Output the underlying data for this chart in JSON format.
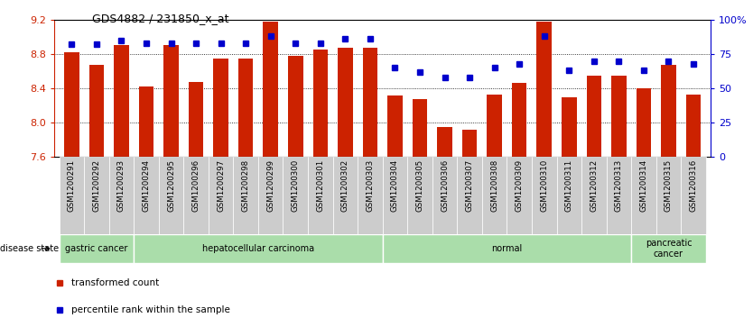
{
  "title": "GDS4882 / 231850_x_at",
  "samples": [
    "GSM1200291",
    "GSM1200292",
    "GSM1200293",
    "GSM1200294",
    "GSM1200295",
    "GSM1200296",
    "GSM1200297",
    "GSM1200298",
    "GSM1200299",
    "GSM1200300",
    "GSM1200301",
    "GSM1200302",
    "GSM1200303",
    "GSM1200304",
    "GSM1200305",
    "GSM1200306",
    "GSM1200307",
    "GSM1200308",
    "GSM1200309",
    "GSM1200310",
    "GSM1200311",
    "GSM1200312",
    "GSM1200313",
    "GSM1200314",
    "GSM1200315",
    "GSM1200316"
  ],
  "bar_values": [
    8.82,
    8.67,
    8.9,
    8.42,
    8.9,
    8.47,
    8.75,
    8.75,
    9.18,
    8.78,
    8.85,
    8.87,
    8.87,
    8.32,
    8.27,
    7.95,
    7.92,
    8.33,
    8.46,
    9.18,
    8.3,
    8.55,
    8.55,
    8.4,
    8.67,
    8.33
  ],
  "percentile_values": [
    82,
    82,
    85,
    83,
    83,
    83,
    83,
    83,
    88,
    83,
    83,
    86,
    86,
    65,
    62,
    58,
    58,
    65,
    68,
    88,
    63,
    70,
    70,
    63,
    70,
    68
  ],
  "ylim_left": [
    7.6,
    9.2
  ],
  "ylim_right": [
    0,
    100
  ],
  "yticks_left": [
    7.6,
    8.0,
    8.4,
    8.8,
    9.2
  ],
  "yticks_right": [
    0,
    25,
    50,
    75,
    100
  ],
  "bar_color": "#cc2200",
  "percentile_color": "#0000cc",
  "bar_width": 0.6,
  "disease_groups": [
    {
      "label": "gastric cancer",
      "start": 0,
      "end": 3
    },
    {
      "label": "hepatocellular carcinoma",
      "start": 3,
      "end": 13
    },
    {
      "label": "normal",
      "start": 13,
      "end": 23
    },
    {
      "label": "pancreatic\ncancer",
      "start": 23,
      "end": 26
    }
  ],
  "disease_bg_color": "#aaddaa",
  "legend_items": [
    {
      "color": "#cc2200",
      "label": "transformed count"
    },
    {
      "color": "#0000cc",
      "label": "percentile rank within the sample"
    }
  ],
  "xtick_bg_color": "#cccccc",
  "grid_yticks": [
    8.0,
    8.4,
    8.8
  ],
  "title_fontsize": 9
}
